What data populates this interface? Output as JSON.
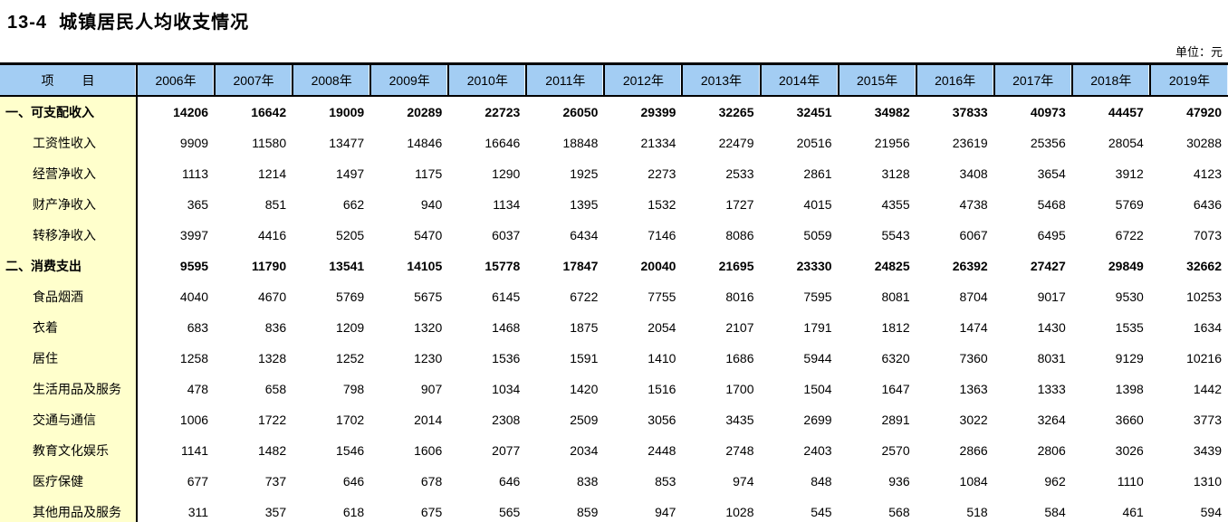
{
  "page": {
    "title": "13-4  城镇居民人均收支情况",
    "unit_label": "单位：元"
  },
  "colors": {
    "header_bg": "#a3cdf3",
    "label_bg": "#ffffcc",
    "border": "#000000"
  },
  "chart_data": {
    "type": "table",
    "title": "13-4 城镇居民人均收支情况",
    "unit": "元"
  },
  "table": {
    "header": {
      "item_label": "项        目",
      "years": [
        "2006年",
        "2007年",
        "2008年",
        "2009年",
        "2010年",
        "2011年",
        "2012年",
        "2013年",
        "2014年",
        "2015年",
        "2016年",
        "2017年",
        "2018年",
        "2019年"
      ]
    },
    "rows": [
      {
        "label": "一、可支配收入",
        "bold": true,
        "indent": false,
        "values": [
          14206,
          16642,
          19009,
          20289,
          22723,
          26050,
          29399,
          32265,
          32451,
          34982,
          37833,
          40973,
          44457,
          47920
        ]
      },
      {
        "label": "工资性收入",
        "bold": false,
        "indent": true,
        "values": [
          9909,
          11580,
          13477,
          14846,
          16646,
          18848,
          21334,
          22479,
          20516,
          21956,
          23619,
          25356,
          28054,
          30288
        ]
      },
      {
        "label": "经营净收入",
        "bold": false,
        "indent": true,
        "values": [
          1113,
          1214,
          1497,
          1175,
          1290,
          1925,
          2273,
          2533,
          2861,
          3128,
          3408,
          3654,
          3912,
          4123
        ]
      },
      {
        "label": "财产净收入",
        "bold": false,
        "indent": true,
        "values": [
          365,
          851,
          662,
          940,
          1134,
          1395,
          1532,
          1727,
          4015,
          4355,
          4738,
          5468,
          5769,
          6436
        ]
      },
      {
        "label": "转移净收入",
        "bold": false,
        "indent": true,
        "values": [
          3997,
          4416,
          5205,
          5470,
          6037,
          6434,
          7146,
          8086,
          5059,
          5543,
          6067,
          6495,
          6722,
          7073
        ]
      },
      {
        "label": "二、消费支出",
        "bold": true,
        "indent": false,
        "values": [
          9595,
          11790,
          13541,
          14105,
          15778,
          17847,
          20040,
          21695,
          23330,
          24825,
          26392,
          27427,
          29849,
          32662
        ]
      },
      {
        "label": "食品烟酒",
        "bold": false,
        "indent": true,
        "values": [
          4040,
          4670,
          5769,
          5675,
          6145,
          6722,
          7755,
          8016,
          7595,
          8081,
          8704,
          9017,
          9530,
          10253
        ]
      },
      {
        "label": "衣着",
        "bold": false,
        "indent": true,
        "values": [
          683,
          836,
          1209,
          1320,
          1468,
          1875,
          2054,
          2107,
          1791,
          1812,
          1474,
          1430,
          1535,
          1634
        ]
      },
      {
        "label": "居住",
        "bold": false,
        "indent": true,
        "values": [
          1258,
          1328,
          1252,
          1230,
          1536,
          1591,
          1410,
          1686,
          5944,
          6320,
          7360,
          8031,
          9129,
          10216
        ]
      },
      {
        "label": "生活用品及服务",
        "bold": false,
        "indent": true,
        "values": [
          478,
          658,
          798,
          907,
          1034,
          1420,
          1516,
          1700,
          1504,
          1647,
          1363,
          1333,
          1398,
          1442
        ]
      },
      {
        "label": "交通与通信",
        "bold": false,
        "indent": true,
        "values": [
          1006,
          1722,
          1702,
          2014,
          2308,
          2509,
          3056,
          3435,
          2699,
          2891,
          3022,
          3264,
          3660,
          3773
        ]
      },
      {
        "label": "教育文化娱乐",
        "bold": false,
        "indent": true,
        "values": [
          1141,
          1482,
          1546,
          1606,
          2077,
          2034,
          2448,
          2748,
          2403,
          2570,
          2866,
          2806,
          3026,
          3439
        ]
      },
      {
        "label": "医疗保健",
        "bold": false,
        "indent": true,
        "values": [
          677,
          737,
          646,
          678,
          646,
          838,
          853,
          974,
          848,
          936,
          1084,
          962,
          1110,
          1310
        ]
      },
      {
        "label": "其他用品及服务",
        "bold": false,
        "indent": true,
        "values": [
          311,
          357,
          618,
          675,
          565,
          859,
          947,
          1028,
          545,
          568,
          518,
          584,
          461,
          594
        ]
      }
    ]
  }
}
